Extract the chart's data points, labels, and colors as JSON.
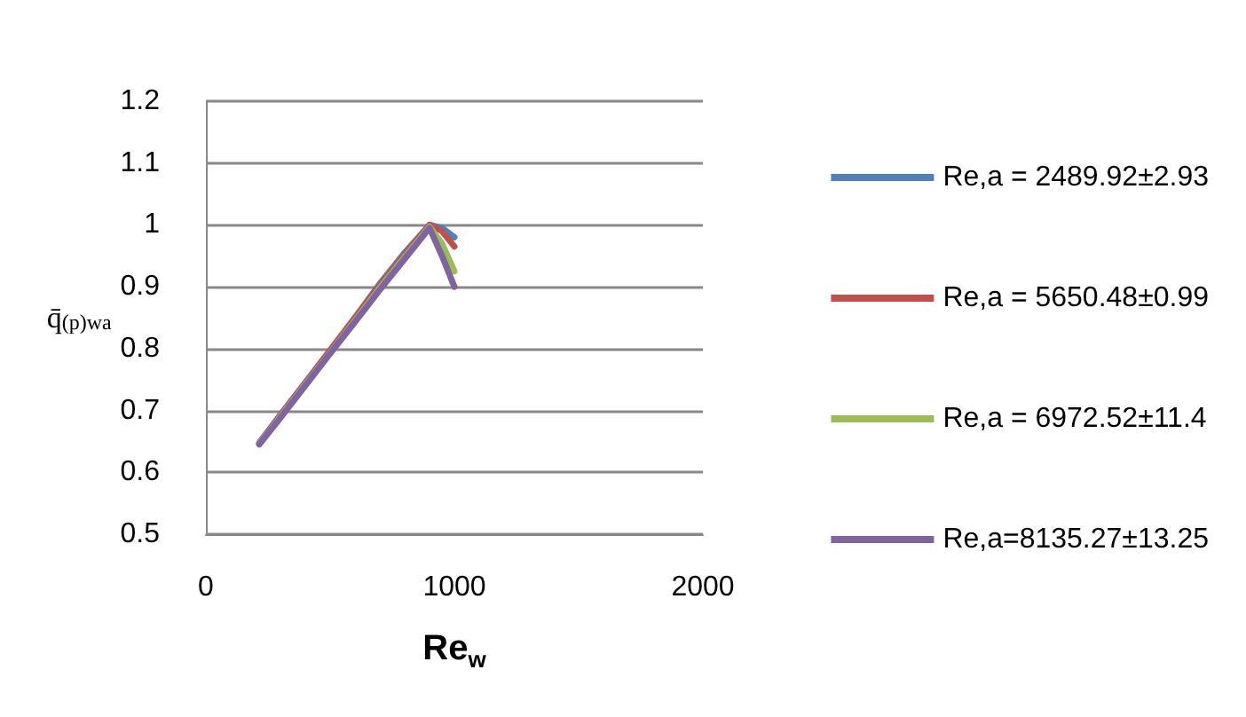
{
  "chart_data": {
    "type": "line",
    "xlabel": "Re$_{w}$",
    "ylabel": "q̄$_{(p)wa}$",
    "xlim": [
      0,
      2000
    ],
    "xticks": [
      0,
      1000,
      2000
    ],
    "ylim": [
      0.5,
      1.2
    ],
    "yticks": [
      0.5,
      0.6,
      0.7,
      0.8,
      0.9,
      1,
      1.1,
      1.2
    ],
    "grid": "y",
    "legend": "right",
    "marker": "none",
    "line_style": "solid",
    "x": [
      215,
      300,
      400,
      500,
      600,
      700,
      800,
      900,
      950,
      1000
    ],
    "series": [
      {
        "name": "Re,a = 2489.92±2.93",
        "color": "#4f81bd",
        "values": [
          0.648,
          0.693,
          0.745,
          0.797,
          0.85,
          0.905,
          0.955,
          1.0,
          0.995,
          0.98
        ]
      },
      {
        "name": "Re,a = 5650.48±0.99",
        "color": "#c0504d",
        "values": [
          0.647,
          0.692,
          0.744,
          0.797,
          0.85,
          0.902,
          0.952,
          1.0,
          0.99,
          0.965
        ]
      },
      {
        "name": "Re,a = 6972.52±11.4",
        "color": "#9bbb59",
        "values": [
          0.646,
          0.69,
          0.742,
          0.793,
          0.845,
          0.898,
          0.948,
          0.997,
          0.97,
          0.925
        ]
      },
      {
        "name": "Re,a=8135.27±13.25",
        "color": "#8064a2",
        "values": [
          0.645,
          0.688,
          0.74,
          0.792,
          0.843,
          0.895,
          0.945,
          0.995,
          0.95,
          0.9
        ]
      }
    ]
  }
}
